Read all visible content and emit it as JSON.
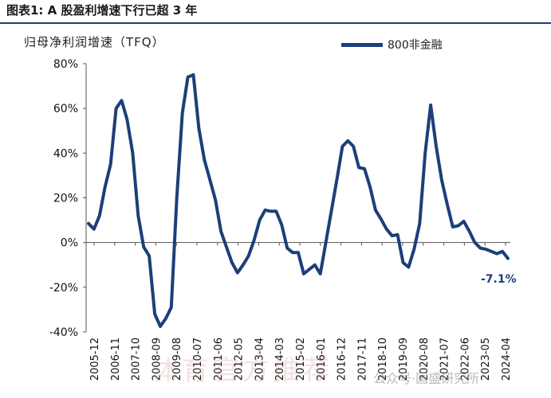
{
  "figure": {
    "title": "图表1:  A 股盈利增速下行已超 3 年",
    "watermark": "体育官方推荐",
    "watermark2": "公众号·国盛研究所"
  },
  "chart_data": {
    "type": "line",
    "ylabel": "归母净利润增速（TFQ）",
    "ylim": [
      -40,
      80
    ],
    "y_ticks": [
      "80%",
      "60%",
      "40%",
      "20%",
      "0%",
      "-20%",
      "-40%"
    ],
    "y_tick_values": [
      80,
      60,
      40,
      20,
      0,
      -20,
      -40
    ],
    "x_ticks": [
      "2005-12",
      "2006-11",
      "2007-10",
      "2008-09",
      "2009-08",
      "2010-07",
      "2011-06",
      "2012-05",
      "2013-04",
      "2014-03",
      "2015-02",
      "2016-01",
      "2016-12",
      "2017-11",
      "2018-10",
      "2019-09",
      "2020-08",
      "2021-07",
      "2022-06",
      "2023-05",
      "2024-04"
    ],
    "series": [
      {
        "name": "800非金融",
        "color": "#1c3f7a",
        "values": [
          8.5,
          6,
          12,
          25,
          35,
          60,
          63.5,
          55,
          40,
          12,
          -2,
          -6,
          -32,
          -37.5,
          -34,
          -29,
          20,
          58,
          74,
          75,
          51,
          37,
          28,
          19,
          5,
          -2,
          -9,
          -13.5,
          -10,
          -6,
          1,
          10,
          14.5,
          14,
          14,
          8,
          -2.5,
          -4.5,
          -4.5,
          -14,
          -12,
          -10,
          -14,
          0,
          14,
          28,
          43,
          45.5,
          43,
          33.5,
          33,
          25,
          14.5,
          10.5,
          6,
          3,
          3.5,
          -9,
          -11,
          -3,
          8.5,
          40,
          61.5,
          43,
          28,
          17,
          7,
          7.5,
          9.5,
          5,
          0,
          -2.5,
          -3,
          -4,
          -5,
          -4,
          -7.1
        ]
      }
    ],
    "annotation": "-7.1%",
    "grid": false,
    "legend": "top-right"
  }
}
